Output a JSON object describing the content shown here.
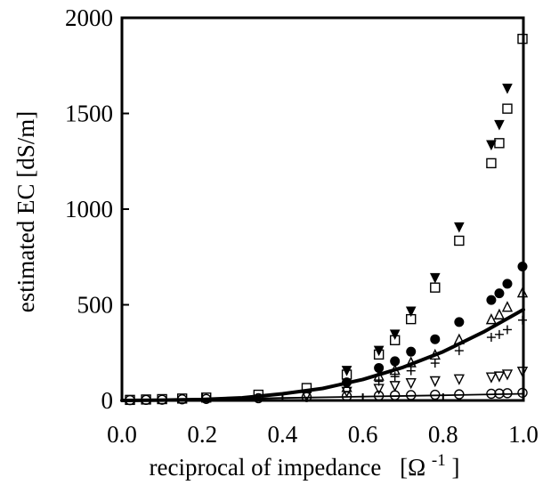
{
  "chart_data": {
    "type": "scatter",
    "xlabel": "reciprocal of impedance",
    "xlabel_unit": "[Ω",
    "xlabel_unit_sup": "-1",
    "xlabel_unit_close": "]",
    "ylabel": "estimated EC [dS/m]",
    "xlim": [
      0.0,
      1.0
    ],
    "ylim": [
      0,
      2000
    ],
    "x_ticks": [
      "0.0",
      "0.2",
      "0.4",
      "0.6",
      "0.8",
      "1.0"
    ],
    "x_tick_values": [
      0.0,
      0.2,
      0.4,
      0.6,
      0.8,
      1.0
    ],
    "y_ticks": [
      "0",
      "500",
      "1000",
      "1500",
      "2000"
    ],
    "y_tick_values": [
      0,
      500,
      1000,
      1500,
      2000
    ],
    "grid": false,
    "legend": "none",
    "series": [
      {
        "marker": "filled-triangle-down",
        "x": [
          0.56,
          0.64,
          0.68,
          0.72,
          0.78,
          0.84,
          0.92,
          0.94,
          0.96
        ],
        "y": [
          155,
          260,
          345,
          465,
          640,
          905,
          1335,
          1440,
          1630
        ]
      },
      {
        "marker": "open-square",
        "x": [
          0.02,
          0.06,
          0.1,
          0.15,
          0.21,
          0.34,
          0.46,
          0.56,
          0.64,
          0.68,
          0.72,
          0.78,
          0.84,
          0.92,
          0.94,
          0.96,
          1.0
        ],
        "y": [
          3,
          5,
          7,
          10,
          15,
          30,
          65,
          135,
          240,
          315,
          425,
          590,
          835,
          1240,
          1345,
          1525,
          1890
        ]
      },
      {
        "marker": "filled-circle",
        "x": [
          0.56,
          0.64,
          0.68,
          0.72,
          0.78,
          0.84,
          0.92,
          0.94,
          0.96,
          1.0
        ],
        "y": [
          95,
          170,
          205,
          255,
          320,
          410,
          525,
          560,
          610,
          700
        ]
      },
      {
        "marker": "open-triangle-up",
        "x": [
          0.56,
          0.64,
          0.68,
          0.72,
          0.78,
          0.84,
          0.92,
          0.94,
          0.96,
          1.0
        ],
        "y": [
          70,
          130,
          160,
          200,
          240,
          320,
          425,
          450,
          490,
          565
        ]
      },
      {
        "marker": "plus",
        "x": [
          0.64,
          0.68,
          0.72,
          0.78,
          0.84,
          0.92,
          0.94,
          0.96,
          1.0
        ],
        "y": [
          100,
          125,
          155,
          195,
          260,
          330,
          345,
          370,
          420
        ]
      },
      {
        "marker": "open-triangle-down",
        "x": [
          0.46,
          0.56,
          0.64,
          0.68,
          0.72,
          0.78,
          0.84,
          0.92,
          0.94,
          0.96,
          1.0
        ],
        "y": [
          25,
          45,
          60,
          75,
          90,
          100,
          110,
          120,
          125,
          135,
          150
        ]
      },
      {
        "marker": "open-circle",
        "x": [
          0.02,
          0.06,
          0.1,
          0.15,
          0.21,
          0.34,
          0.46,
          0.56,
          0.64,
          0.68,
          0.72,
          0.78,
          0.84,
          0.92,
          0.94,
          0.96,
          1.0
        ],
        "y": [
          2,
          3,
          4,
          6,
          8,
          12,
          18,
          22,
          25,
          27,
          28,
          30,
          32,
          35,
          36,
          38,
          40
        ]
      }
    ],
    "curves": [
      {
        "style": "thick",
        "x": [
          0.0,
          0.1,
          0.2,
          0.3,
          0.4,
          0.5,
          0.6,
          0.7,
          0.8,
          0.9,
          1.0
        ],
        "y": [
          0,
          2,
          5,
          14,
          35,
          63,
          110,
          173,
          255,
          357,
          475
        ]
      },
      {
        "style": "thin",
        "x": [
          0.0,
          0.2,
          0.4,
          0.6,
          0.8,
          1.0
        ],
        "y": [
          0,
          5,
          13,
          20,
          27,
          35
        ]
      }
    ]
  }
}
